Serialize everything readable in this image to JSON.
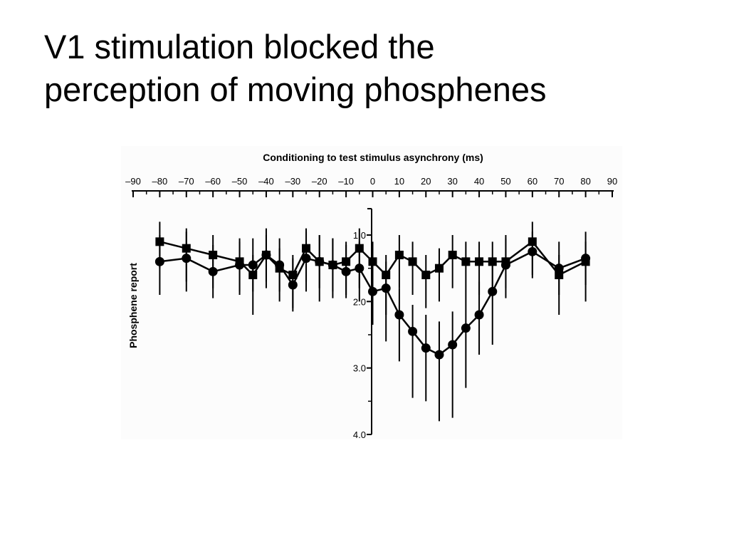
{
  "slide": {
    "title_line1": "V1 stimulation blocked the",
    "title_line2": "perception of moving phosphenes"
  },
  "chart_data": {
    "type": "line",
    "title": "",
    "xlabel": "Conditioning to test stimulus asynchrony (ms)",
    "ylabel": "Phosphene report",
    "xlim": [
      -90,
      90
    ],
    "ylim": [
      0.6,
      4.0
    ],
    "y_inverted": true,
    "x_axis_position": "top",
    "x_ticks": [
      -90,
      -80,
      -70,
      -60,
      -50,
      -40,
      -30,
      -20,
      -10,
      0,
      10,
      20,
      30,
      40,
      50,
      60,
      70,
      80,
      90
    ],
    "x_tick_labels": [
      "–90",
      "–80",
      "–70",
      "–60",
      "–50",
      "–40",
      "–30",
      "–20",
      "–10",
      "0",
      "10",
      "20",
      "30",
      "40",
      "50",
      "60",
      "70",
      "80",
      "90"
    ],
    "y_ticks": [
      1.0,
      2.0,
      3.0,
      4.0
    ],
    "y_tick_labels": [
      "1.0",
      "2.0",
      "3.0",
      "4.0"
    ],
    "grid": false,
    "legend": "none",
    "series": [
      {
        "marker": "square",
        "color": "#000000",
        "x": [
          -80,
          -70,
          -60,
          -50,
          -45,
          -40,
          -35,
          -30,
          -25,
          -20,
          -15,
          -10,
          -5,
          0,
          5,
          10,
          15,
          20,
          25,
          30,
          35,
          40,
          45,
          50,
          60,
          70,
          80
        ],
        "y": [
          1.1,
          1.2,
          1.3,
          1.4,
          1.6,
          1.3,
          1.5,
          1.6,
          1.2,
          1.4,
          1.45,
          1.4,
          1.2,
          1.4,
          1.6,
          1.3,
          1.4,
          1.6,
          1.5,
          1.3,
          1.4,
          1.4,
          1.4,
          1.4,
          1.1,
          1.6,
          1.4
        ],
        "err_low": [
          0.4,
          0.5,
          0.5,
          0.5,
          0.6,
          0.5,
          0.5,
          0.5,
          0.5,
          0.6,
          0.5,
          0.5,
          0.6,
          0.5,
          0.6,
          0.5,
          0.5,
          0.5,
          0.5,
          0.5,
          0.5,
          0.5,
          0.5,
          0.4,
          0.5,
          0.6,
          0.6
        ],
        "err_high": [
          0.3,
          0.3,
          0.3,
          0.3,
          0.3,
          0.3,
          0.3,
          0.3,
          0.3,
          0.4,
          0.4,
          0.3,
          0.3,
          0.3,
          0.3,
          0.3,
          0.3,
          0.3,
          0.3,
          0.3,
          0.3,
          0.3,
          0.3,
          0.4,
          0.3,
          0.3,
          0.3
        ]
      },
      {
        "marker": "circle",
        "color": "#000000",
        "x": [
          -80,
          -70,
          -60,
          -50,
          -45,
          -40,
          -35,
          -30,
          -25,
          -20,
          -15,
          -10,
          -5,
          0,
          5,
          10,
          15,
          20,
          25,
          30,
          35,
          40,
          45,
          50,
          60,
          70,
          80
        ],
        "y": [
          1.4,
          1.35,
          1.55,
          1.45,
          1.45,
          1.3,
          1.45,
          1.75,
          1.35,
          1.4,
          1.45,
          1.55,
          1.5,
          1.85,
          1.8,
          2.2,
          2.45,
          2.7,
          2.8,
          2.65,
          2.4,
          2.2,
          1.85,
          1.45,
          1.25,
          1.5,
          1.35
        ],
        "err_low": [
          0.5,
          0.5,
          0.4,
          0.4,
          0.4,
          0.4,
          0.4,
          0.4,
          0.5,
          0.4,
          0.4,
          0.4,
          0.5,
          0.5,
          0.8,
          0.7,
          1.0,
          0.8,
          1.0,
          1.1,
          0.9,
          0.6,
          0.8,
          0.5,
          0.4,
          0.4,
          0.4
        ],
        "err_high": [
          0.4,
          0.4,
          0.4,
          0.4,
          0.4,
          0.4,
          0.4,
          0.4,
          0.4,
          0.4,
          0.4,
          0.4,
          0.4,
          0.4,
          0.4,
          0.4,
          0.4,
          0.5,
          0.5,
          0.5,
          0.5,
          0.5,
          0.5,
          0.4,
          0.3,
          0.4,
          0.4
        ]
      }
    ]
  }
}
